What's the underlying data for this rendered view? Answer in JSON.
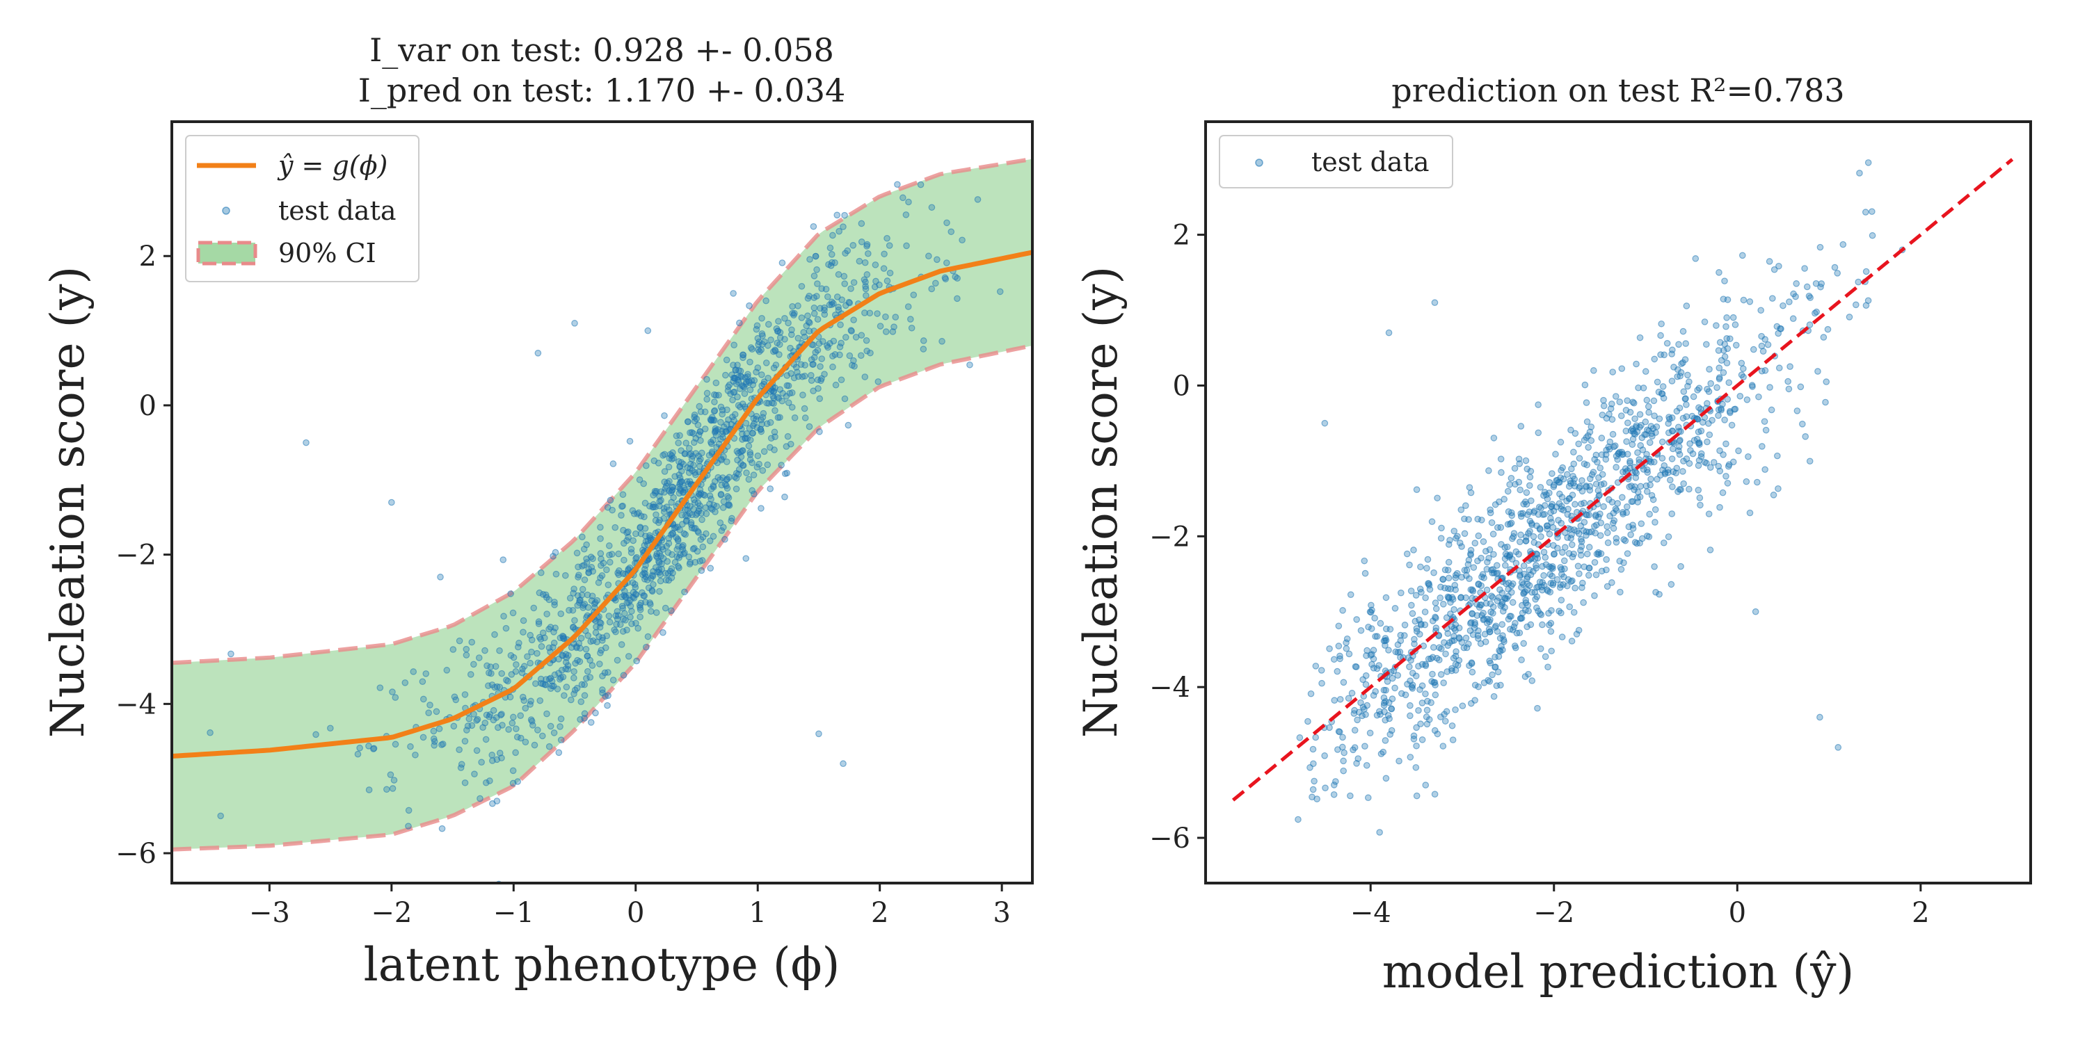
{
  "colors": {
    "curve": "#f28018",
    "points": "#1f77b4",
    "ci_fill": "#a5d9a5",
    "ci_edge": "#e88a8a",
    "diag": "#e8141e",
    "axes": "#222222"
  },
  "chart_data": [
    {
      "type": "scatter",
      "panel": "left",
      "title_lines": [
        "I_var on test: 0.928 +- 0.058",
        "I_pred on test: 1.170 +- 0.034"
      ],
      "xlabel": "latent phenotype (ϕ)",
      "ylabel": "Nucleation score (y)",
      "xlim": [
        -3.8,
        3.25
      ],
      "ylim": [
        -6.4,
        3.8
      ],
      "xticks": [
        -3,
        -2,
        -1,
        0,
        1,
        2,
        3
      ],
      "yticks": [
        -6,
        -4,
        -2,
        0,
        2
      ],
      "grid": false,
      "legend_position": "top-left",
      "legend": [
        "ŷ = g(ϕ)",
        "test data",
        "90% CI"
      ],
      "curve": {
        "name": "ŷ = g(ϕ)",
        "x": [
          -3.8,
          -3.0,
          -2.0,
          -1.5,
          -1.0,
          -0.5,
          0.0,
          0.5,
          1.0,
          1.5,
          2.0,
          2.5,
          3.25
        ],
        "y": [
          -4.7,
          -4.62,
          -4.45,
          -4.2,
          -3.8,
          -3.1,
          -2.2,
          -1.05,
          0.1,
          1.0,
          1.5,
          1.8,
          2.05
        ]
      },
      "ci_90": {
        "name": "90% CI",
        "x": [
          -3.8,
          -3.0,
          -2.0,
          -1.5,
          -1.0,
          -0.5,
          0.0,
          0.5,
          1.0,
          1.5,
          2.0,
          2.5,
          3.25
        ],
        "lower": [
          -5.95,
          -5.9,
          -5.75,
          -5.5,
          -5.1,
          -4.35,
          -3.45,
          -2.3,
          -1.15,
          -0.3,
          0.25,
          0.55,
          0.8
        ],
        "upper": [
          -3.45,
          -3.38,
          -3.2,
          -2.95,
          -2.5,
          -1.8,
          -0.9,
          0.25,
          1.4,
          2.3,
          2.8,
          3.1,
          3.3
        ]
      },
      "scatter": {
        "name": "test data",
        "n_points": 1400,
        "points_x": [
          -3.4,
          -2.7,
          -2.0,
          -1.6,
          -0.8,
          -0.5,
          0.1,
          0.8,
          1.5,
          1.7,
          0.4,
          2.4,
          2.6
        ],
        "points_y": [
          -5.5,
          -0.5,
          -1.3,
          -2.3,
          0.7,
          1.1,
          1.0,
          1.5,
          -4.4,
          -4.8,
          -2.5,
          2.0,
          1.8
        ]
      }
    },
    {
      "type": "scatter",
      "panel": "right",
      "title": "prediction on test R²=0.783",
      "xlabel": "model prediction (ŷ)",
      "ylabel": "Nucleation score (y)",
      "xlim": [
        -5.8,
        3.2
      ],
      "ylim": [
        -6.6,
        3.5
      ],
      "xticks": [
        -4,
        -2,
        0,
        2
      ],
      "yticks": [
        -6,
        -4,
        -2,
        0,
        2
      ],
      "grid": false,
      "legend_position": "top-left",
      "legend": [
        "test data"
      ],
      "diagonal": {
        "x": [
          -5.5,
          3.0
        ],
        "y": [
          -5.5,
          3.0
        ]
      },
      "scatter": {
        "name": "test data",
        "n_points": 1400,
        "points_x": [
          -4.5,
          -3.8,
          -3.3,
          -1.2,
          -0.2,
          0.9,
          1.1,
          1.4,
          1.8,
          -3.4,
          0.2
        ],
        "points_y": [
          -0.5,
          0.7,
          1.1,
          -0.2,
          1.5,
          -4.4,
          -4.8,
          2.3,
          1.8,
          -5.3,
          -3.0
        ]
      }
    }
  ]
}
